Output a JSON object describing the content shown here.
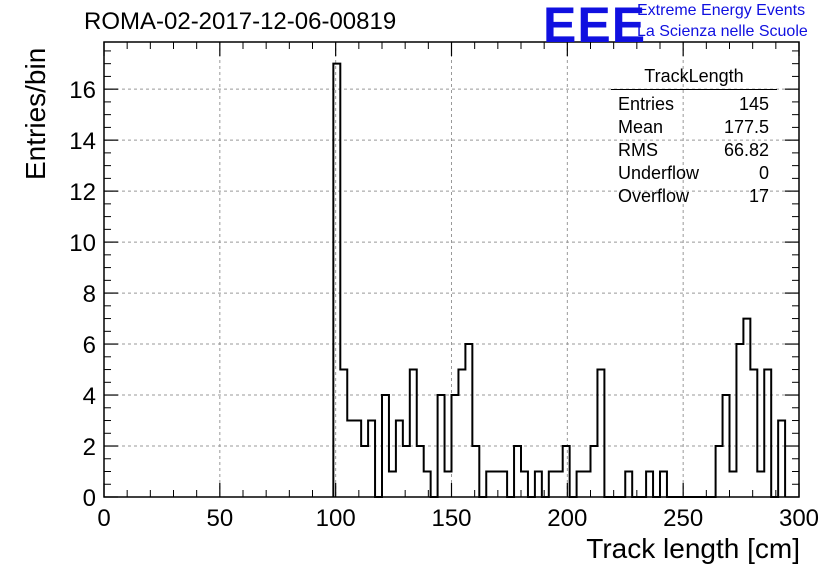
{
  "header": {
    "run_title": "ROMA-02-2017-12-06-00819",
    "logo_text": "EEE",
    "logo_line1": "Extreme Energy Events",
    "logo_line2": "La Scienza nelle Scuole",
    "logo_color": "#1010e0"
  },
  "stats_box": {
    "title": "TrackLength",
    "rows": [
      {
        "label": "Entries",
        "value": "145"
      },
      {
        "label": "Mean",
        "value": "177.5"
      },
      {
        "label": "RMS",
        "value": "66.82"
      },
      {
        "label": "Underflow",
        "value": "0"
      },
      {
        "label": "Overflow",
        "value": "17"
      }
    ]
  },
  "chart_data": {
    "type": "bar",
    "histogram": true,
    "xlabel": "Track length [cm]",
    "ylabel": "Entries/bin",
    "xlim": [
      0,
      300
    ],
    "ylim": [
      0,
      17.85
    ],
    "bin_width": 3,
    "x_ticks": [
      "0",
      "50",
      "100",
      "150",
      "200",
      "250",
      "300"
    ],
    "y_ticks": [
      "0",
      "2",
      "4",
      "6",
      "8",
      "10",
      "12",
      "14",
      "16"
    ],
    "grid": true,
    "bin_edges_start": [
      99,
      102,
      105,
      108,
      111,
      114,
      117,
      120,
      123,
      126,
      129,
      132,
      135,
      138,
      141,
      144,
      147,
      150,
      153,
      156,
      159,
      162,
      165,
      168,
      171,
      174,
      177,
      180,
      183,
      186,
      189,
      192,
      195,
      198,
      201,
      204,
      207,
      210,
      213,
      216,
      219,
      222,
      225,
      228,
      231,
      234,
      237,
      240,
      243,
      246,
      249,
      252,
      255,
      258,
      261,
      264,
      267,
      270,
      273,
      276,
      279,
      282,
      285,
      288,
      291
    ],
    "values": [
      17,
      5,
      3,
      3,
      2,
      3,
      0,
      4,
      1,
      3,
      2,
      5,
      2,
      1,
      0,
      4,
      1,
      4,
      5,
      6,
      2,
      0,
      1,
      1,
      1,
      0,
      2,
      1,
      0,
      1,
      0,
      1,
      1,
      2,
      0,
      1,
      1,
      2,
      5,
      0,
      0,
      0,
      1,
      0,
      0,
      1,
      0,
      1,
      0,
      0,
      0,
      0,
      0,
      0,
      0,
      2,
      4,
      1,
      6,
      7,
      5,
      1,
      5,
      0,
      3
    ]
  }
}
